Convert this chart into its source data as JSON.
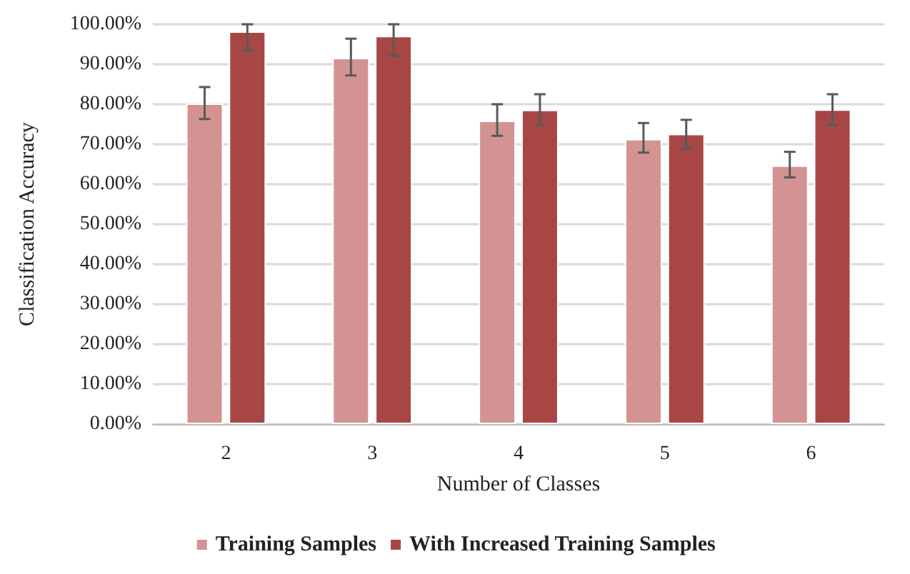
{
  "chart_data": {
    "type": "bar",
    "xlabel": "Number of Classes",
    "ylabel": "Classification Accuracy",
    "categories": [
      "2",
      "3",
      "4",
      "5",
      "6"
    ],
    "series": [
      {
        "name": "Training Samples",
        "color": "#d39393",
        "values": [
          80.2,
          91.6,
          75.9,
          71.3,
          64.7
        ],
        "errors": [
          [
            76.3,
            84.3
          ],
          [
            87.2,
            96.4
          ],
          [
            72.1,
            80
          ],
          [
            67.9,
            75.3
          ],
          [
            61.7,
            68.1
          ]
        ]
      },
      {
        "name": "With Increased Training Samples",
        "color": "#a84646",
        "values": [
          98.2,
          97.1,
          78.6,
          72.6,
          78.7
        ],
        "errors": [
          [
            93.4,
            100
          ],
          [
            92.1,
            100
          ],
          [
            74.8,
            82.5
          ],
          [
            68.9,
            76.1
          ],
          [
            74.8,
            82.5
          ]
        ]
      }
    ],
    "ylim": [
      0,
      100
    ],
    "yticks": [
      {
        "value": 0,
        "label": "0.00%"
      },
      {
        "value": 10,
        "label": "10.00%"
      },
      {
        "value": 20,
        "label": "20.00%"
      },
      {
        "value": 30,
        "label": "30.00%"
      },
      {
        "value": 40,
        "label": "40.00%"
      },
      {
        "value": 50,
        "label": "50.00%"
      },
      {
        "value": 60,
        "label": "60.00%"
      },
      {
        "value": 70,
        "label": "70.00%"
      },
      {
        "value": 80,
        "label": "80.00%"
      },
      {
        "value": 90,
        "label": "90.00%"
      },
      {
        "value": 100,
        "label": "100.00%"
      }
    ],
    "grid": "y",
    "legend": "bottom"
  }
}
